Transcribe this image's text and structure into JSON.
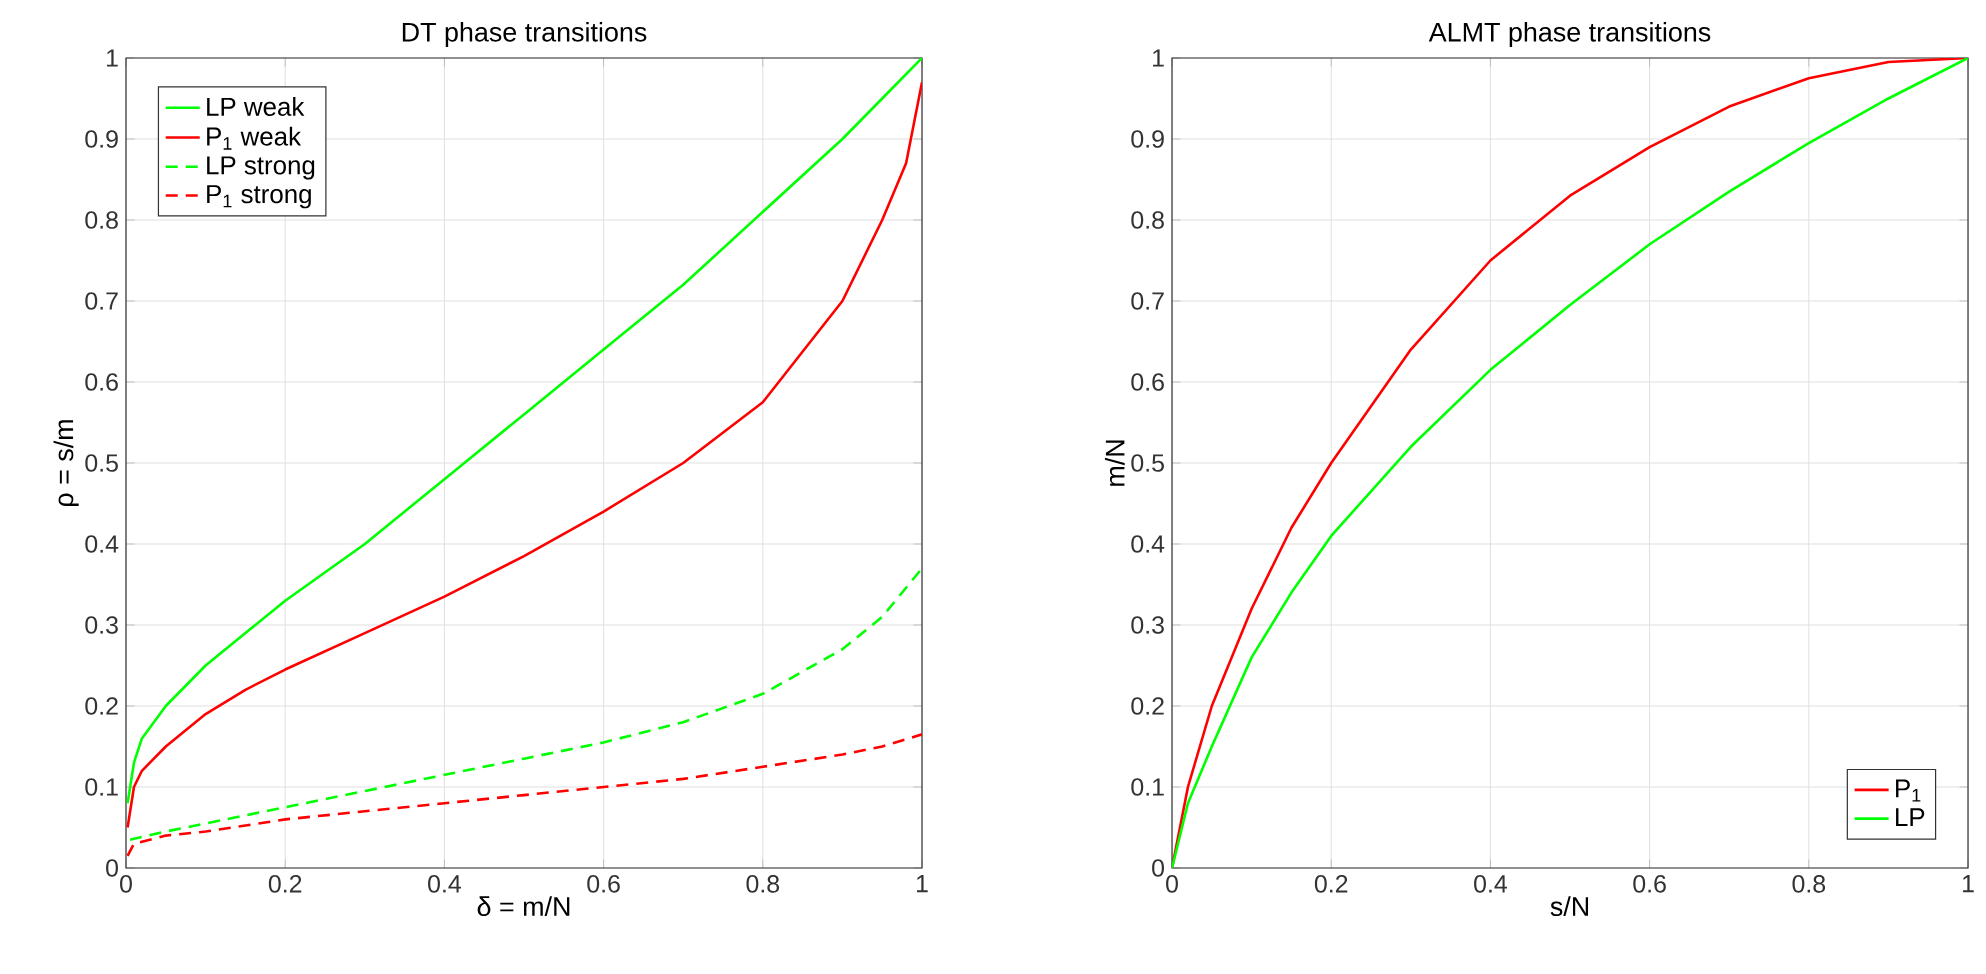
{
  "chart_data": [
    {
      "type": "line",
      "title": "DT phase transitions",
      "xlabel": "δ = m/N",
      "ylabel": "ρ = s/m",
      "xlim": [
        0,
        1
      ],
      "ylim": [
        0,
        1
      ],
      "xticks": [
        0,
        0.2,
        0.4,
        0.6,
        0.8,
        1
      ],
      "yticks": [
        0,
        0.1,
        0.2,
        0.3,
        0.4,
        0.5,
        0.6,
        0.7,
        0.8,
        0.9,
        1
      ],
      "grid": true,
      "legend": "top left",
      "series": [
        {
          "name": "LP weak",
          "color": "#00ff00",
          "line_style": "solid",
          "x": [
            0.002,
            0.01,
            0.02,
            0.05,
            0.1,
            0.15,
            0.2,
            0.3,
            0.4,
            0.5,
            0.6,
            0.7,
            0.8,
            0.9,
            0.95,
            1
          ],
          "values": [
            0.08,
            0.13,
            0.16,
            0.2,
            0.25,
            0.29,
            0.33,
            0.4,
            0.48,
            0.56,
            0.64,
            0.72,
            0.81,
            0.9,
            0.95,
            1.0
          ]
        },
        {
          "name": "P$_{1}$ weak",
          "color": "#ff0000",
          "line_style": "solid",
          "x": [
            0.002,
            0.01,
            0.02,
            0.05,
            0.1,
            0.15,
            0.2,
            0.3,
            0.4,
            0.5,
            0.6,
            0.7,
            0.8,
            0.9,
            0.95,
            0.98,
            1
          ],
          "values": [
            0.05,
            0.1,
            0.12,
            0.15,
            0.19,
            0.22,
            0.245,
            0.29,
            0.335,
            0.385,
            0.44,
            0.5,
            0.575,
            0.7,
            0.8,
            0.87,
            0.97
          ]
        },
        {
          "name": "LP strong",
          "color": "#00ff00",
          "line_style": "dashed",
          "x": [
            0.005,
            0.05,
            0.1,
            0.2,
            0.3,
            0.4,
            0.5,
            0.6,
            0.7,
            0.8,
            0.9,
            0.95,
            1
          ],
          "values": [
            0.035,
            0.045,
            0.055,
            0.075,
            0.095,
            0.115,
            0.135,
            0.155,
            0.18,
            0.215,
            0.27,
            0.31,
            0.37
          ]
        },
        {
          "name": "P$_{1}$ strong",
          "color": "#ff0000",
          "line_style": "dashed",
          "x": [
            0.002,
            0.01,
            0.05,
            0.1,
            0.2,
            0.3,
            0.4,
            0.5,
            0.6,
            0.7,
            0.8,
            0.9,
            0.95,
            1
          ],
          "values": [
            0.015,
            0.03,
            0.04,
            0.045,
            0.06,
            0.07,
            0.08,
            0.09,
            0.1,
            0.11,
            0.125,
            0.14,
            0.15,
            0.165
          ]
        }
      ]
    },
    {
      "type": "line",
      "title": "ALMT phase transitions",
      "xlabel": "s/N",
      "ylabel": "m/N",
      "xlim": [
        0,
        1
      ],
      "ylim": [
        0,
        1
      ],
      "xticks": [
        0,
        0.2,
        0.4,
        0.6,
        0.8,
        1
      ],
      "yticks": [
        0,
        0.1,
        0.2,
        0.3,
        0.4,
        0.5,
        0.6,
        0.7,
        0.8,
        0.9,
        1
      ],
      "grid": true,
      "legend": "bottom right",
      "series": [
        {
          "name": "P$_{1}$",
          "color": "#ff0000",
          "line_style": "solid",
          "x": [
            0,
            0.02,
            0.05,
            0.1,
            0.15,
            0.2,
            0.3,
            0.4,
            0.5,
            0.6,
            0.7,
            0.8,
            0.9,
            1
          ],
          "values": [
            0,
            0.1,
            0.2,
            0.32,
            0.42,
            0.5,
            0.64,
            0.75,
            0.83,
            0.89,
            0.94,
            0.975,
            0.995,
            1
          ]
        },
        {
          "name": "LP",
          "color": "#00ff00",
          "line_style": "solid",
          "x": [
            0,
            0.02,
            0.05,
            0.1,
            0.15,
            0.2,
            0.3,
            0.4,
            0.5,
            0.6,
            0.7,
            0.8,
            0.9,
            1
          ],
          "values": [
            0,
            0.08,
            0.15,
            0.26,
            0.34,
            0.41,
            0.52,
            0.615,
            0.695,
            0.77,
            0.835,
            0.895,
            0.95,
            1
          ]
        }
      ]
    }
  ]
}
